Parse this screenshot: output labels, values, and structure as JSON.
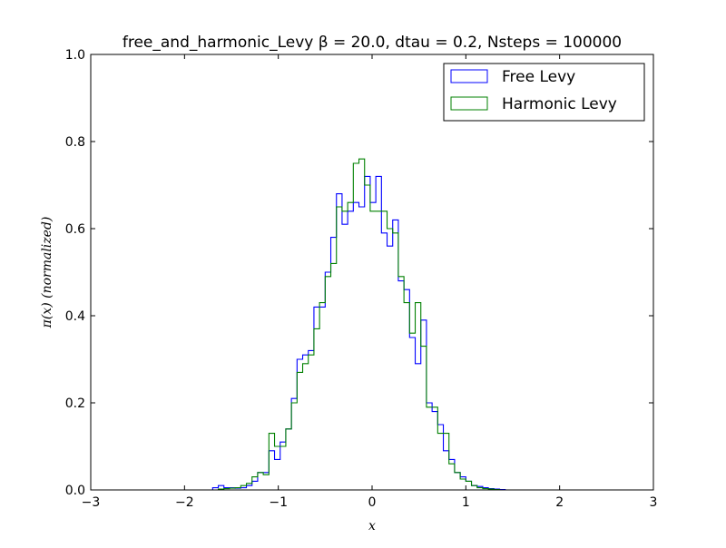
{
  "chart_data": {
    "type": "histogram-step",
    "title": "free_and_harmonic_Levy β = 20.0, dtau = 0.2, Nsteps = 100000",
    "xlabel": "x",
    "ylabel": "π(x) (normalized)",
    "xlim": [
      -3,
      3
    ],
    "ylim": [
      0,
      1
    ],
    "xticks": [
      "−3",
      "−2",
      "−1",
      "0",
      "1",
      "2",
      "3"
    ],
    "yticks": [
      "0.0",
      "0.2",
      "0.4",
      "0.6",
      "0.8",
      "1.0"
    ],
    "grid": false,
    "legend_position": "top-right",
    "bin_edges_start": -1.7,
    "bin_width": 0.06,
    "series": [
      {
        "name": "Free Levy",
        "color": "#0000ff",
        "values": [
          0.005,
          0.01,
          0.005,
          0.005,
          0.004,
          0.005,
          0.01,
          0.02,
          0.04,
          0.04,
          0.09,
          0.07,
          0.11,
          0.14,
          0.21,
          0.3,
          0.31,
          0.32,
          0.42,
          0.42,
          0.5,
          0.58,
          0.68,
          0.61,
          0.64,
          0.66,
          0.65,
          0.72,
          0.66,
          0.72,
          0.59,
          0.56,
          0.62,
          0.48,
          0.46,
          0.35,
          0.29,
          0.39,
          0.2,
          0.18,
          0.15,
          0.09,
          0.07,
          0.04,
          0.03,
          0.02,
          0.01,
          0.008,
          0.005,
          0.003,
          0.002,
          0.001
        ]
      },
      {
        "name": "Harmonic Levy",
        "color": "#008000",
        "values": [
          0.0,
          0.002,
          0.003,
          0.004,
          0.005,
          0.01,
          0.015,
          0.03,
          0.04,
          0.035,
          0.13,
          0.1,
          0.1,
          0.14,
          0.2,
          0.27,
          0.29,
          0.31,
          0.37,
          0.43,
          0.49,
          0.52,
          0.65,
          0.64,
          0.66,
          0.75,
          0.76,
          0.7,
          0.64,
          0.64,
          0.64,
          0.6,
          0.59,
          0.49,
          0.43,
          0.36,
          0.43,
          0.33,
          0.19,
          0.19,
          0.13,
          0.13,
          0.06,
          0.04,
          0.025,
          0.02,
          0.01,
          0.005,
          0.003,
          0.002,
          0.001,
          0.0
        ]
      }
    ]
  }
}
